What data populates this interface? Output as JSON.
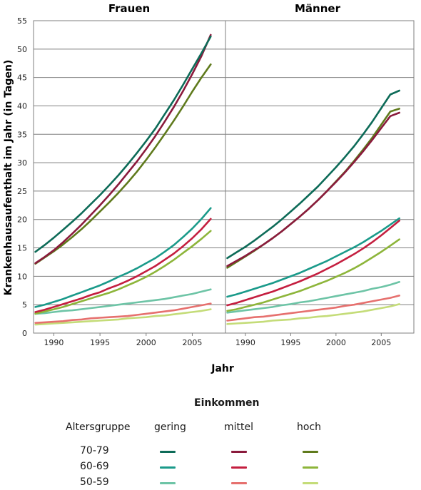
{
  "chart_data": {
    "type": "line",
    "ylabel": "Krankenhausaufenthalt im Jahr (in Tagen)",
    "xlabel": "Jahr",
    "xlim": [
      1987.8,
      2008.6
    ],
    "ylim": [
      0,
      55
    ],
    "x_ticks": [
      1990,
      1995,
      2000,
      2005
    ],
    "y_ticks": [
      0,
      5,
      10,
      15,
      20,
      25,
      30,
      35,
      40,
      45,
      50,
      55
    ],
    "grid": true,
    "x": [
      1988,
      1989,
      1990,
      1991,
      1992,
      1993,
      1994,
      1995,
      1996,
      1997,
      1998,
      1999,
      2000,
      2001,
      2002,
      2003,
      2004,
      2005,
      2006,
      2007
    ],
    "panels": [
      {
        "title": "Frauen",
        "series": [
          {
            "group": "70-79",
            "income": "gering",
            "color": "#0d6b58",
            "values": [
              14.3,
              15.5,
              16.8,
              18.2,
              19.6,
              21.1,
              22.7,
              24.3,
              26.0,
              27.8,
              29.7,
              31.7,
              33.8,
              36.0,
              38.5,
              41.0,
              43.7,
              46.5,
              49.3,
              52.2
            ]
          },
          {
            "group": "70-79",
            "income": "mittel",
            "color": "#8a1a3c",
            "values": [
              12.3,
              13.4,
              14.6,
              16.0,
              17.5,
              19.1,
              20.8,
              22.5,
              24.3,
              26.2,
              28.2,
              30.2,
              32.4,
              34.7,
              37.2,
              39.8,
              42.6,
              45.6,
              48.8,
              52.5
            ]
          },
          {
            "group": "70-79",
            "income": "hoch",
            "color": "#5f7a1c",
            "values": [
              12.2,
              13.3,
              14.4,
              15.6,
              16.9,
              18.3,
              19.8,
              21.4,
              23.0,
              24.7,
              26.5,
              28.4,
              30.5,
              32.7,
              35.0,
              37.4,
              39.9,
              42.5,
              45.0,
              47.3
            ]
          },
          {
            "group": "60-69",
            "income": "gering",
            "color": "#1a9a8a",
            "values": [
              4.6,
              5.0,
              5.5,
              6.0,
              6.6,
              7.2,
              7.8,
              8.4,
              9.1,
              9.9,
              10.6,
              11.4,
              12.3,
              13.2,
              14.3,
              15.5,
              16.9,
              18.4,
              20.1,
              22.0
            ]
          },
          {
            "group": "60-69",
            "income": "mittel",
            "color": "#c41e3f",
            "values": [
              3.7,
              4.1,
              4.6,
              5.1,
              5.6,
              6.1,
              6.7,
              7.2,
              7.9,
              8.5,
              9.2,
              10.0,
              10.9,
              11.8,
              12.9,
              14.0,
              15.3,
              16.7,
              18.3,
              20.1
            ]
          },
          {
            "group": "60-69",
            "income": "hoch",
            "color": "#8db53a",
            "values": [
              3.4,
              3.8,
              4.2,
              4.6,
              5.1,
              5.6,
              6.1,
              6.6,
              7.1,
              7.7,
              8.4,
              9.1,
              9.9,
              10.8,
              11.8,
              12.9,
              14.1,
              15.3,
              16.6,
              18.0
            ]
          },
          {
            "group": "50-59",
            "income": "gering",
            "color": "#6dc4a6",
            "values": [
              3.4,
              3.5,
              3.7,
              3.9,
              4.0,
              4.2,
              4.4,
              4.6,
              4.8,
              5.0,
              5.2,
              5.4,
              5.6,
              5.8,
              6.0,
              6.3,
              6.6,
              6.9,
              7.3,
              7.7
            ]
          },
          {
            "group": "50-59",
            "income": "mittel",
            "color": "#e6706e",
            "values": [
              1.8,
              1.9,
              2.0,
              2.1,
              2.3,
              2.4,
              2.6,
              2.7,
              2.8,
              2.9,
              3.0,
              3.2,
              3.4,
              3.6,
              3.8,
              4.0,
              4.3,
              4.6,
              4.9,
              5.2
            ]
          },
          {
            "group": "50-59",
            "income": "hoch",
            "color": "#c4dc78",
            "values": [
              1.5,
              1.6,
              1.7,
              1.8,
              1.9,
              2.0,
              2.1,
              2.2,
              2.3,
              2.4,
              2.6,
              2.7,
              2.8,
              3.0,
              3.1,
              3.3,
              3.5,
              3.7,
              3.9,
              4.2
            ]
          }
        ]
      },
      {
        "title": "Männer",
        "series": [
          {
            "group": "70-79",
            "income": "gering",
            "color": "#0d6b58",
            "values": [
              13.2,
              14.2,
              15.2,
              16.3,
              17.5,
              18.7,
              20.0,
              21.4,
              22.8,
              24.3,
              25.8,
              27.5,
              29.2,
              31.0,
              32.9,
              35.0,
              37.2,
              39.6,
              42.0,
              42.7
            ]
          },
          {
            "group": "70-79",
            "income": "mittel",
            "color": "#8a1a3c",
            "values": [
              11.8,
              12.7,
              13.6,
              14.6,
              15.6,
              16.7,
              17.9,
              19.2,
              20.5,
              21.9,
              23.4,
              25.0,
              26.6,
              28.3,
              30.1,
              32.0,
              34.0,
              36.1,
              38.2,
              38.8
            ]
          },
          {
            "group": "70-79",
            "income": "hoch",
            "color": "#5f7a1c",
            "values": [
              11.5,
              12.5,
              13.5,
              14.5,
              15.6,
              16.7,
              17.9,
              19.2,
              20.5,
              21.9,
              23.4,
              25.0,
              26.7,
              28.4,
              30.3,
              32.3,
              34.4,
              36.7,
              39.0,
              39.5
            ]
          },
          {
            "group": "60-69",
            "income": "gering",
            "color": "#1a9a8a",
            "values": [
              6.4,
              6.8,
              7.3,
              7.8,
              8.3,
              8.8,
              9.4,
              10.0,
              10.6,
              11.3,
              12.0,
              12.7,
              13.5,
              14.3,
              15.1,
              16.0,
              17.0,
              18.0,
              19.1,
              20.2
            ]
          },
          {
            "group": "60-69",
            "income": "mittel",
            "color": "#c41e3f",
            "values": [
              4.9,
              5.3,
              5.8,
              6.3,
              6.8,
              7.3,
              7.9,
              8.5,
              9.1,
              9.8,
              10.5,
              11.3,
              12.1,
              13.0,
              13.9,
              14.9,
              16.0,
              17.2,
              18.5,
              19.8
            ]
          },
          {
            "group": "60-69",
            "income": "hoch",
            "color": "#8db53a",
            "values": [
              3.9,
              4.2,
              4.6,
              5.0,
              5.4,
              5.9,
              6.4,
              6.9,
              7.4,
              8.0,
              8.6,
              9.2,
              9.9,
              10.6,
              11.4,
              12.3,
              13.3,
              14.3,
              15.4,
              16.5
            ]
          },
          {
            "group": "50-59",
            "income": "gering",
            "color": "#6dc4a6",
            "values": [
              3.6,
              3.8,
              4.0,
              4.2,
              4.4,
              4.6,
              4.9,
              5.1,
              5.4,
              5.6,
              5.9,
              6.2,
              6.5,
              6.8,
              7.1,
              7.4,
              7.8,
              8.1,
              8.5,
              9.0
            ]
          },
          {
            "group": "50-59",
            "income": "mittel",
            "color": "#e6706e",
            "values": [
              2.2,
              2.4,
              2.6,
              2.8,
              2.9,
              3.1,
              3.3,
              3.5,
              3.7,
              3.9,
              4.1,
              4.3,
              4.5,
              4.8,
              5.0,
              5.3,
              5.6,
              5.9,
              6.2,
              6.6
            ]
          },
          {
            "group": "50-59",
            "income": "hoch",
            "color": "#c4dc78",
            "values": [
              1.6,
              1.7,
              1.8,
              1.9,
              2.0,
              2.2,
              2.3,
              2.4,
              2.6,
              2.7,
              2.9,
              3.0,
              3.2,
              3.4,
              3.6,
              3.8,
              4.1,
              4.4,
              4.7,
              5.1
            ]
          }
        ]
      }
    ],
    "legend": {
      "title": "Einkommen",
      "row_header": "Altersgruppe",
      "columns": [
        "gering",
        "mittel",
        "hoch"
      ],
      "rows": [
        "70-79",
        "60-69",
        "50-59"
      ],
      "colors": [
        [
          "#0d6b58",
          "#8a1a3c",
          "#5f7a1c"
        ],
        [
          "#1a9a8a",
          "#c41e3f",
          "#8db53a"
        ],
        [
          "#6dc4a6",
          "#e6706e",
          "#c4dc78"
        ]
      ]
    }
  }
}
